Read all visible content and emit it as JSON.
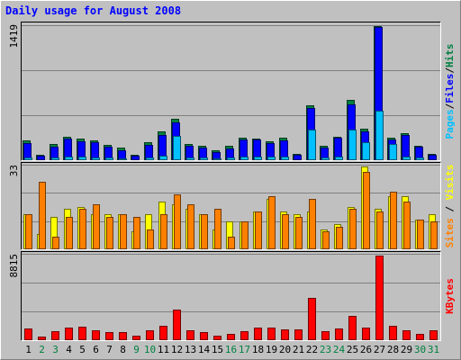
{
  "chart_data": {
    "type": "bar",
    "title": "Daily usage for August 2008",
    "categories": [
      "1",
      "2",
      "3",
      "4",
      "5",
      "6",
      "7",
      "8",
      "9",
      "10",
      "11",
      "12",
      "13",
      "14",
      "15",
      "16",
      "17",
      "18",
      "19",
      "20",
      "21",
      "22",
      "23",
      "24",
      "25",
      "26",
      "27",
      "28",
      "29",
      "30",
      "31"
    ],
    "weekend_days": [
      "2",
      "3",
      "9",
      "10",
      "16",
      "17",
      "23",
      "24",
      "30",
      "31"
    ],
    "panels": [
      {
        "name": "hits-files-pages",
        "max_label": "1419",
        "ylim": [
          0,
          1419
        ],
        "axis_label_parts": [
          {
            "text": "Pages",
            "color": "#00c0ff"
          },
          {
            "text": "/",
            "color": "#000000"
          },
          {
            "text": "Files",
            "color": "#0000ff"
          },
          {
            "text": "/",
            "color": "#000000"
          },
          {
            "text": "Hits",
            "color": "#008040"
          }
        ],
        "series": [
          {
            "name": "Hits",
            "color": "#008040",
            "values": [
              210,
              60,
              170,
              250,
              230,
              210,
              160,
              130,
              60,
              190,
              300,
              440,
              170,
              150,
              100,
              150,
              240,
              230,
              200,
              240,
              70,
              580,
              150,
              250,
              640,
              330,
              1419,
              240,
              290,
              150,
              70
            ]
          },
          {
            "name": "Files",
            "color": "#0000ff",
            "values": [
              180,
              50,
              145,
              230,
              200,
              190,
              140,
              105,
              50,
              165,
              270,
              400,
              150,
              130,
              85,
              125,
              215,
              215,
              180,
              210,
              60,
              550,
              130,
              240,
              590,
              305,
              1410,
              220,
              265,
              140,
              60
            ]
          },
          {
            "name": "Pages",
            "color": "#00c0ff",
            "values": [
              30,
              10,
              25,
              40,
              35,
              30,
              25,
              20,
              10,
              30,
              50,
              260,
              30,
              25,
              15,
              25,
              40,
              40,
              35,
              40,
              10,
              320,
              30,
              40,
              320,
              190,
              520,
              170,
              40,
              25,
              10
            ]
          }
        ]
      },
      {
        "name": "visits-sites",
        "max_label": "33",
        "ylim": [
          0,
          33
        ],
        "axis_label_parts": [
          {
            "text": "Sites",
            "color": "#ff8000"
          },
          {
            "text": " / ",
            "color": "#000000"
          },
          {
            "text": "Visits",
            "color": "#ffff00"
          }
        ],
        "series": [
          {
            "name": "Visits",
            "color": "#ffff00",
            "values": [
              14,
              6,
              13,
              16,
              17,
              14,
              14,
              14,
              7,
              14,
              19,
              18,
              16,
              14,
              8,
              11,
              11,
              15,
              20,
              15,
              14,
              15,
              8,
              10,
              17,
              33,
              16,
              21,
              21,
              12,
              14
            ]
          },
          {
            "name": "Sites",
            "color": "#ff8000",
            "values": [
              14,
              27,
              5,
              13,
              16,
              18,
              13,
              14,
              13,
              8,
              14,
              22,
              18,
              14,
              16,
              5,
              11,
              15,
              21,
              14,
              13,
              20,
              7,
              9,
              16,
              31,
              15,
              23,
              19,
              12,
              11
            ]
          }
        ]
      },
      {
        "name": "kbytes",
        "max_label": "8815",
        "ylim": [
          0,
          8815
        ],
        "axis_label_parts": [
          {
            "text": "KBytes",
            "color": "#ff0000"
          }
        ],
        "series": [
          {
            "name": "KBytes",
            "color": "#ff0000",
            "values": [
              1200,
              400,
              900,
              1300,
              1400,
              1000,
              800,
              800,
              500,
              1000,
              1500,
              3200,
              1000,
              800,
              500,
              700,
              900,
              1300,
              1300,
              1100,
              1100,
              4400,
              900,
              1200,
              2500,
              1300,
              8815,
              1500,
              1000,
              700,
              1000
            ]
          }
        ]
      }
    ]
  }
}
